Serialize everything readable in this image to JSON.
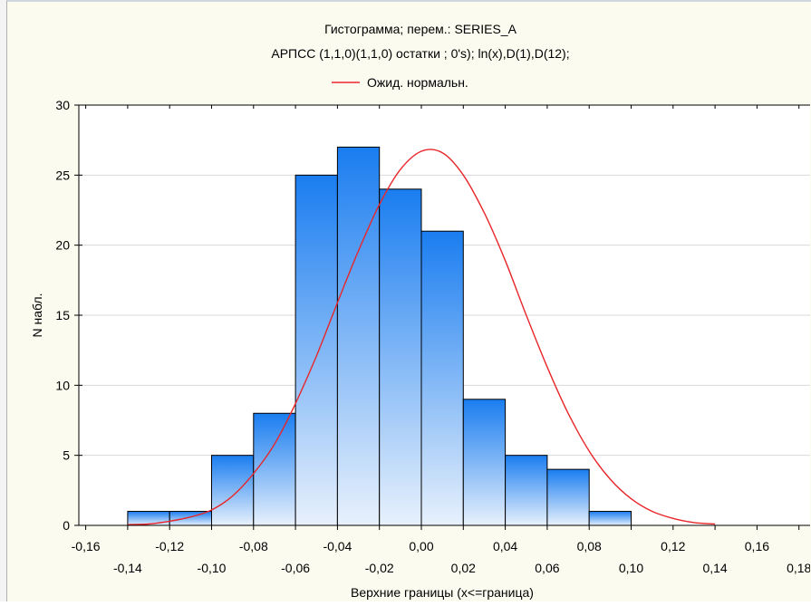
{
  "chart_data": {
    "type": "bar",
    "title": "Гистограмма; перем.: SERIES_A",
    "subtitle": "АРПСС (1,1,0)(1,1,0) остатки  ; 0's); ln(x),D(1),D(12);",
    "legend": [
      {
        "name": "Ожид. нормальн.",
        "color": "#e8262a",
        "kind": "line"
      }
    ],
    "legend_position": "top-center",
    "xlabel": "Верхние границы (x<=граница)",
    "ylabel": "N набл.",
    "xlim": [
      -0.16,
      0.18
    ],
    "ylim": [
      0,
      30
    ],
    "grid": true,
    "bin_width": 0.02,
    "bins": [
      {
        "upper": -0.12,
        "value": 1
      },
      {
        "upper": -0.1,
        "value": 1
      },
      {
        "upper": -0.08,
        "value": 5
      },
      {
        "upper": -0.06,
        "value": 8
      },
      {
        "upper": -0.04,
        "value": 25
      },
      {
        "upper": -0.02,
        "value": 27
      },
      {
        "upper": 0.0,
        "value": 24
      },
      {
        "upper": 0.02,
        "value": 21
      },
      {
        "upper": 0.04,
        "value": 9
      },
      {
        "upper": 0.06,
        "value": 5
      },
      {
        "upper": 0.08,
        "value": 4
      },
      {
        "upper": 0.1,
        "value": 1
      }
    ],
    "normal_curve": {
      "name": "Ожид. нормальн.",
      "x": [
        -0.14,
        -0.13,
        -0.12,
        -0.11,
        -0.1,
        -0.09,
        -0.08,
        -0.07,
        -0.06,
        -0.05,
        -0.04,
        -0.03,
        -0.02,
        -0.01,
        0.0,
        0.01,
        0.02,
        0.03,
        0.04,
        0.05,
        0.06,
        0.07,
        0.08,
        0.09,
        0.1,
        0.11,
        0.12,
        0.13,
        0.14
      ],
      "y": [
        0.05,
        0.1,
        0.3,
        0.6,
        1.1,
        2.1,
        3.7,
        5.8,
        8.7,
        12.1,
        15.9,
        19.6,
        22.9,
        25.4,
        26.7,
        26.6,
        25.0,
        22.3,
        18.9,
        15.0,
        11.3,
        8.0,
        5.3,
        3.3,
        1.9,
        1.0,
        0.5,
        0.2,
        0.1
      ]
    },
    "x_ticks_major": [
      "-0,16",
      "-0,12",
      "-0,08",
      "-0,04",
      "0,00",
      "0,04",
      "0,08",
      "0,12",
      "0,16"
    ],
    "x_ticks_minor": [
      "-0,14",
      "-0,10",
      "-0,06",
      "-0,02",
      "0,02",
      "0,06",
      "0,10",
      "0,14",
      "0,18"
    ],
    "y_ticks": [
      "0",
      "5",
      "10",
      "15",
      "20",
      "25",
      "30"
    ],
    "colors": {
      "bar_top": "#1a7df0",
      "bar_bottom": "#e8f1fc",
      "bar_stroke": "#000000",
      "curve": "#e8262a",
      "plot_bg": "#ffffff",
      "grid": "#d9d9d9",
      "window_bg": "#fcfbf0"
    }
  }
}
